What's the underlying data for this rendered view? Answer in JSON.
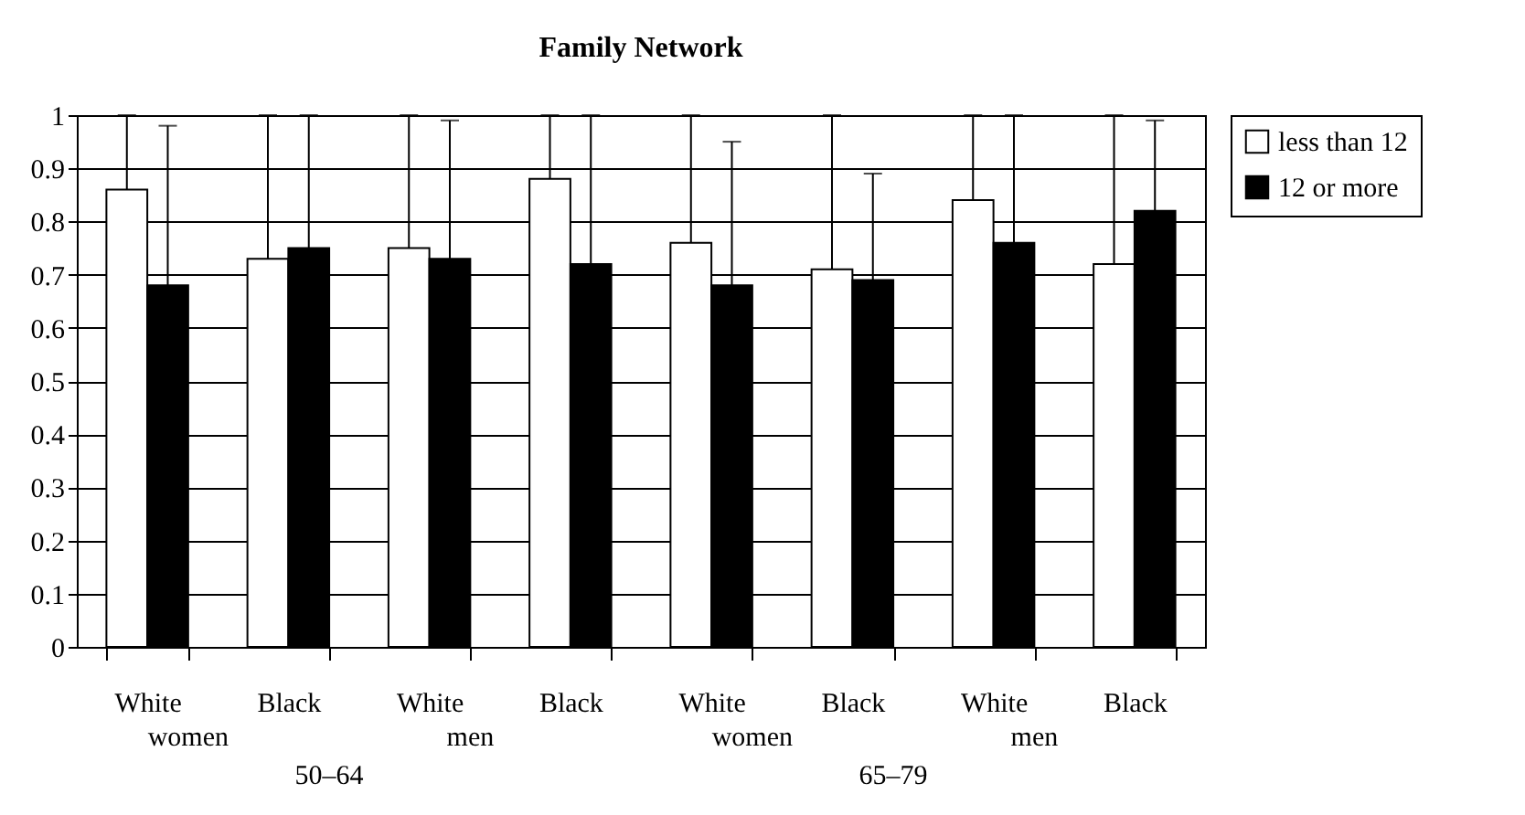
{
  "chart_data": {
    "type": "bar",
    "title": "Family Network",
    "categories": [
      "White",
      "Black",
      "White",
      "Black",
      "White",
      "Black",
      "White",
      "Black"
    ],
    "series": [
      {
        "name": "less than 12",
        "color": "#ffffff",
        "values": [
          0.86,
          0.73,
          0.75,
          0.88,
          0.76,
          0.71,
          0.84,
          0.72
        ],
        "errors": [
          [
            0.86,
            1.0
          ],
          [
            0.73,
            1.0
          ],
          [
            0.75,
            1.0
          ],
          [
            0.88,
            1.0
          ],
          [
            0.76,
            1.0
          ],
          [
            0.71,
            1.0
          ],
          [
            0.84,
            1.0
          ],
          [
            0.72,
            1.0
          ]
        ]
      },
      {
        "name": "12 or more",
        "color": "#000000",
        "values": [
          0.68,
          0.75,
          0.73,
          0.72,
          0.68,
          0.69,
          0.76,
          0.82
        ],
        "errors": [
          [
            0.68,
            0.98
          ],
          [
            0.75,
            1.0
          ],
          [
            0.73,
            0.99
          ],
          [
            0.72,
            1.0
          ],
          [
            0.68,
            0.95
          ],
          [
            0.69,
            0.89
          ],
          [
            0.76,
            1.0
          ],
          [
            0.82,
            0.99
          ]
        ]
      }
    ],
    "ylim": [
      0,
      1
    ],
    "yticks": [
      0,
      0.1,
      0.2,
      0.3,
      0.4,
      0.5,
      0.6,
      0.7,
      0.8,
      0.9,
      1
    ],
    "grid": "y",
    "legend": "right",
    "annotations": [
      "women",
      "men",
      "50–64",
      "women",
      "men",
      "65–79"
    ]
  }
}
